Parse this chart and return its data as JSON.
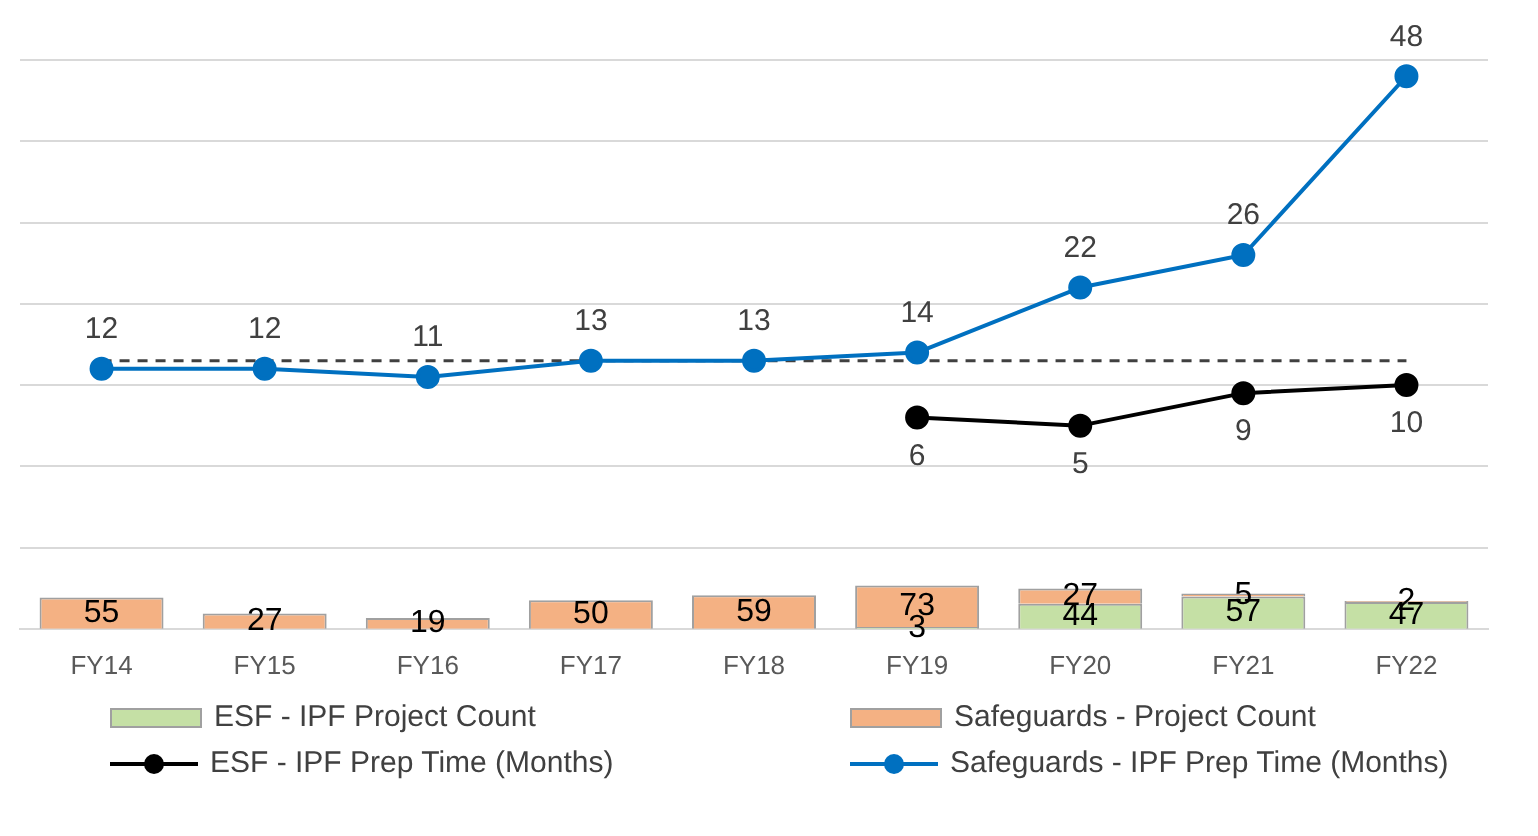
{
  "chart_data": {
    "type": "bar",
    "categories": [
      "FY14",
      "FY15",
      "FY16",
      "FY17",
      "FY18",
      "FY19",
      "FY20",
      "FY21",
      "FY22"
    ],
    "stacked": true,
    "data_labels": true,
    "grid": "y",
    "legend": "bottom",
    "tick_labels": "x",
    "marker": "circle",
    "ylim": [
      -20,
      50
    ],
    "yticks": [
      {
        "value": -20,
        "label": null
      },
      {
        "value": -10,
        "label": null
      },
      {
        "value": 0,
        "label": null
      },
      {
        "value": 10,
        "label": null
      },
      {
        "value": 20,
        "label": null
      },
      {
        "value": 30,
        "label": null
      },
      {
        "value": 40,
        "label": null
      },
      {
        "value": 50,
        "label": null
      }
    ],
    "y2lim": [
      0,
      1000
    ],
    "ref_lines": [
      {
        "axis": "y",
        "value": 13,
        "color": "#404040",
        "line_style": "dashed"
      }
    ],
    "series": [
      {
        "name": "ESF - IPF Project Count",
        "axis": "y2",
        "color": "#c5e0a5",
        "values": [
          null,
          null,
          null,
          null,
          null,
          3,
          44,
          57,
          47
        ]
      },
      {
        "name": "Safeguards - Project Count",
        "axis": "y2",
        "color": "#f4b183",
        "values": [
          55,
          27,
          19,
          50,
          59,
          73,
          27,
          5,
          2
        ]
      },
      {
        "name": "ESF - IPF Prep Time (Months)",
        "type": "line",
        "color": "#000000",
        "values": [
          null,
          null,
          null,
          null,
          null,
          6,
          5,
          9,
          10
        ]
      },
      {
        "name": "Safeguards - IPF Prep Time (Months)",
        "type": "line",
        "color": "#0070c0",
        "values": [
          12,
          12,
          11,
          13,
          13,
          14,
          22,
          26,
          48
        ]
      }
    ]
  }
}
